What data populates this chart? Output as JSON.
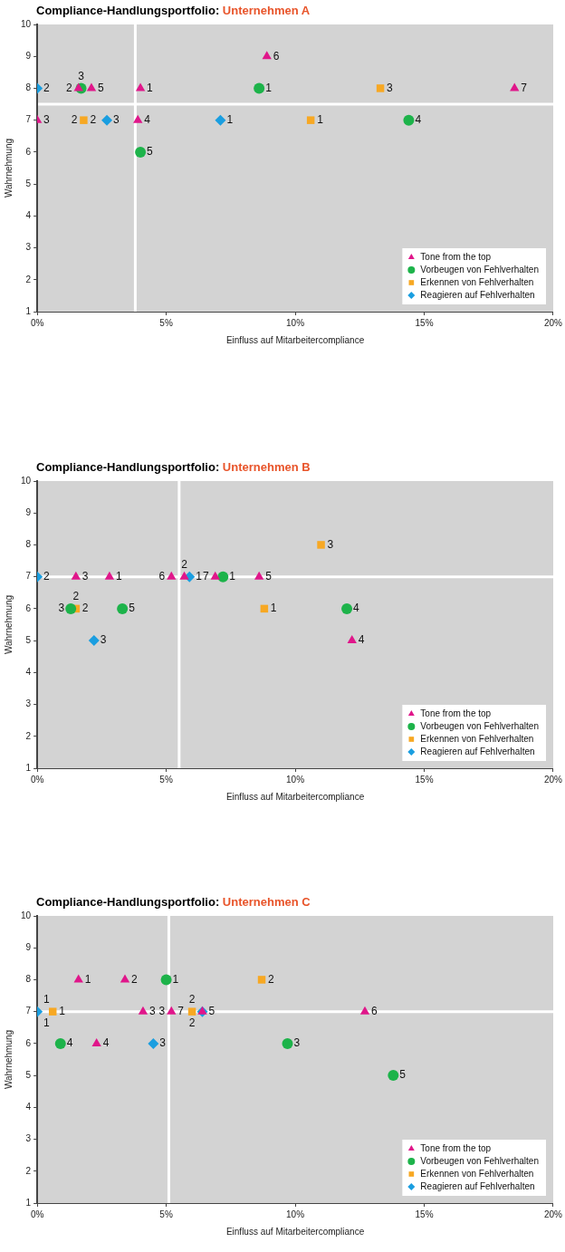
{
  "chart_data": [
    {
      "type": "scatter",
      "title": "Compliance-Handlungsportfolio:",
      "subtitle": "Unternehmen A",
      "xlabel": "Einfluss auf Mitarbeitercompliance",
      "ylabel": "Wahrnehmung",
      "xlim": [
        0,
        20
      ],
      "xticks": [
        {
          "value": 0,
          "label": "0%"
        },
        {
          "value": 5,
          "label": "5%"
        },
        {
          "value": 10,
          "label": "10%"
        },
        {
          "value": 15,
          "label": "15%"
        },
        {
          "value": 20,
          "label": "20%"
        }
      ],
      "ylim": [
        1,
        10
      ],
      "yticks": [
        1,
        2,
        3,
        4,
        5,
        6,
        7,
        8,
        9,
        10
      ],
      "grid": false,
      "legend": "bottom right",
      "series": [
        {
          "name": "Tone from the top",
          "color": "#e0168a",
          "marker": "triangle",
          "x": [
            4.0,
            1.6,
            0.0,
            3.9,
            2.1,
            8.9,
            18.5
          ],
          "values": [
            8,
            8,
            7,
            7,
            8,
            9,
            8
          ]
        },
        {
          "name": "Vorbeugen von Fehlverhalten",
          "color": "#1db34a",
          "marker": "circle",
          "x": [
            8.6,
            1.7,
            14.4,
            4.0
          ],
          "values": [
            8,
            8,
            7,
            6
          ]
        },
        {
          "name": "Erkennen von Fehlverhalten",
          "color": "#f7a823",
          "marker": "square",
          "x": [
            10.6,
            1.8,
            13.3
          ],
          "values": [
            7,
            7,
            8
          ]
        },
        {
          "name": "Reagieren auf Fehlverhalten",
          "color": "#1a9ee0",
          "marker": "diamond",
          "x": [
            7.1,
            0.0,
            2.7
          ],
          "values": [
            7,
            8,
            7
          ]
        }
      ],
      "annotations": [
        {
          "text": "1",
          "x": 4.0,
          "y": 8
        },
        {
          "text": "2",
          "x": 1.6,
          "y": 8
        },
        {
          "text": "3",
          "x": 0.0,
          "y": 7
        },
        {
          "text": "4",
          "x": 3.9,
          "y": 7
        },
        {
          "text": "5",
          "x": 2.1,
          "y": 8
        },
        {
          "text": "6",
          "x": 8.9,
          "y": 9
        },
        {
          "text": "7",
          "x": 18.5,
          "y": 8
        },
        {
          "text": "1",
          "x": 8.6,
          "y": 8
        },
        {
          "text": "3",
          "x": 1.7,
          "y": 8
        },
        {
          "text": "4",
          "x": 14.4,
          "y": 7
        },
        {
          "text": "5",
          "x": 4.0,
          "y": 6
        },
        {
          "text": "1",
          "x": 10.6,
          "y": 7
        },
        {
          "text": "2",
          "x": 1.8,
          "y": 7
        },
        {
          "text": "2",
          "x": 1.8,
          "y": 7
        },
        {
          "text": "3",
          "x": 13.3,
          "y": 8
        },
        {
          "text": "1",
          "x": 7.1,
          "y": 7
        },
        {
          "text": "2",
          "x": 0.0,
          "y": 8
        },
        {
          "text": "3",
          "x": 2.7,
          "y": 7
        }
      ],
      "ref_lines": [
        {
          "axis": "x",
          "value": 3.8,
          "color": "#ffffff"
        },
        {
          "axis": "y",
          "value": 7.5,
          "color": "#ffffff"
        }
      ]
    },
    {
      "type": "scatter",
      "title": "Compliance-Handlungsportfolio:",
      "subtitle": "Unternehmen B",
      "xlabel": "Einfluss auf Mitarbeitercompliance",
      "ylabel": "Wahrnehmung",
      "xlim": [
        0,
        20
      ],
      "xticks": [
        {
          "value": 0,
          "label": "0%"
        },
        {
          "value": 5,
          "label": "5%"
        },
        {
          "value": 10,
          "label": "10%"
        },
        {
          "value": 15,
          "label": "15%"
        },
        {
          "value": 20,
          "label": "20%"
        }
      ],
      "ylim": [
        1,
        10
      ],
      "yticks": [
        1,
        2,
        3,
        4,
        5,
        6,
        7,
        8,
        9,
        10
      ],
      "grid": false,
      "legend": "bottom right",
      "series": [
        {
          "name": "Tone from the top",
          "color": "#e0168a",
          "marker": "triangle",
          "x": [
            2.8,
            5.7,
            1.5,
            12.2,
            8.6,
            5.2,
            6.9
          ],
          "values": [
            7,
            7,
            7,
            5,
            7,
            7,
            7
          ]
        },
        {
          "name": "Vorbeugen von Fehlverhalten",
          "color": "#1db34a",
          "marker": "circle",
          "x": [
            7.2,
            1.3,
            12.0,
            3.3
          ],
          "values": [
            7,
            6,
            6,
            6
          ]
        },
        {
          "name": "Erkennen von Fehlverhalten",
          "color": "#f7a823",
          "marker": "square",
          "x": [
            8.8,
            1.5,
            11.0
          ],
          "values": [
            6,
            6,
            8
          ]
        },
        {
          "name": "Reagieren auf Fehlverhalten",
          "color": "#1a9ee0",
          "marker": "diamond",
          "x": [
            5.9,
            0.0,
            2.2
          ],
          "values": [
            7,
            7,
            5
          ]
        }
      ],
      "annotations": [
        {
          "text": "1",
          "x": 2.8,
          "y": 7
        },
        {
          "text": "2",
          "x": 5.7,
          "y": 7
        },
        {
          "text": "3",
          "x": 1.5,
          "y": 7
        },
        {
          "text": "4",
          "x": 12.2,
          "y": 5
        },
        {
          "text": "5",
          "x": 8.6,
          "y": 7
        },
        {
          "text": "6",
          "x": 5.2,
          "y": 7
        },
        {
          "text": "7",
          "x": 6.9,
          "y": 7
        },
        {
          "text": "1",
          "x": 7.2,
          "y": 7
        },
        {
          "text": "3",
          "x": 1.3,
          "y": 6
        },
        {
          "text": "4",
          "x": 12.0,
          "y": 6
        },
        {
          "text": "5",
          "x": 3.3,
          "y": 6
        },
        {
          "text": "1",
          "x": 8.8,
          "y": 6
        },
        {
          "text": "2",
          "x": 1.5,
          "y": 6
        },
        {
          "text": "2",
          "x": 1.5,
          "y": 6
        },
        {
          "text": "3",
          "x": 11.0,
          "y": 8
        },
        {
          "text": "1",
          "x": 5.9,
          "y": 7
        },
        {
          "text": "2",
          "x": 0.0,
          "y": 7
        },
        {
          "text": "3",
          "x": 2.2,
          "y": 5
        }
      ],
      "ref_lines": [
        {
          "axis": "x",
          "value": 5.5,
          "color": "#ffffff"
        },
        {
          "axis": "y",
          "value": 7,
          "color": "#ffffff"
        }
      ]
    },
    {
      "type": "scatter",
      "title": "Compliance-Handlungsportfolio:",
      "subtitle": "Unternehmen C",
      "xlabel": "Einfluss auf Mitarbeitercompliance",
      "ylabel": "Wahrnehmung",
      "xlim": [
        0,
        20
      ],
      "xticks": [
        {
          "value": 0,
          "label": "0%"
        },
        {
          "value": 5,
          "label": "5%"
        },
        {
          "value": 10,
          "label": "10%"
        },
        {
          "value": 15,
          "label": "15%"
        },
        {
          "value": 20,
          "label": "20%"
        }
      ],
      "ylim": [
        1,
        10
      ],
      "yticks": [
        1,
        2,
        3,
        4,
        5,
        6,
        7,
        8,
        9,
        10
      ],
      "grid": false,
      "legend": "bottom right",
      "series": [
        {
          "name": "Tone from the top",
          "color": "#e0168a",
          "marker": "triangle",
          "x": [
            1.6,
            3.4,
            4.1,
            2.3,
            6.4,
            12.7,
            5.2
          ],
          "values": [
            8,
            8,
            7,
            6,
            7,
            7,
            7
          ]
        },
        {
          "name": "Vorbeugen von Fehlverhalten",
          "color": "#1db34a",
          "marker": "circle",
          "x": [
            5.0,
            9.7,
            0.9,
            13.8
          ],
          "values": [
            8,
            6,
            6,
            5
          ]
        },
        {
          "name": "Erkennen von Fehlverhalten",
          "color": "#f7a823",
          "marker": "square",
          "x": [
            0.6,
            8.7,
            6.0
          ],
          "values": [
            7,
            8,
            7
          ]
        },
        {
          "name": "Reagieren auf Fehlverhalten",
          "color": "#1a9ee0",
          "marker": "diamond",
          "x": [
            0.0,
            4.5,
            6.4
          ],
          "values": [
            7,
            6,
            7
          ]
        }
      ],
      "annotations": [
        {
          "text": "1",
          "x": 1.6,
          "y": 8
        },
        {
          "text": "2",
          "x": 3.4,
          "y": 8
        },
        {
          "text": "3",
          "x": 4.1,
          "y": 7
        },
        {
          "text": "4",
          "x": 2.3,
          "y": 6
        },
        {
          "text": "5",
          "x": 6.4,
          "y": 7
        },
        {
          "text": "6",
          "x": 12.7,
          "y": 7
        },
        {
          "text": "7",
          "x": 5.2,
          "y": 7
        },
        {
          "text": "3",
          "x": 5.2,
          "y": 7
        },
        {
          "text": "1",
          "x": 5.0,
          "y": 8
        },
        {
          "text": "3",
          "x": 9.7,
          "y": 6
        },
        {
          "text": "4",
          "x": 0.9,
          "y": 6
        },
        {
          "text": "5",
          "x": 13.8,
          "y": 5
        },
        {
          "text": "1",
          "x": 0.6,
          "y": 7
        },
        {
          "text": "2",
          "x": 8.7,
          "y": 8
        },
        {
          "text": "2",
          "x": 6.0,
          "y": 7
        },
        {
          "text": "2",
          "x": 6.0,
          "y": 7
        },
        {
          "text": "1",
          "x": 0.0,
          "y": 7
        },
        {
          "text": "1",
          "x": 0.0,
          "y": 7
        },
        {
          "text": "3",
          "x": 4.5,
          "y": 6
        }
      ],
      "ref_lines": [
        {
          "axis": "x",
          "value": 5.1,
          "color": "#ffffff"
        },
        {
          "axis": "y",
          "value": 7,
          "color": "#ffffff"
        }
      ]
    }
  ]
}
